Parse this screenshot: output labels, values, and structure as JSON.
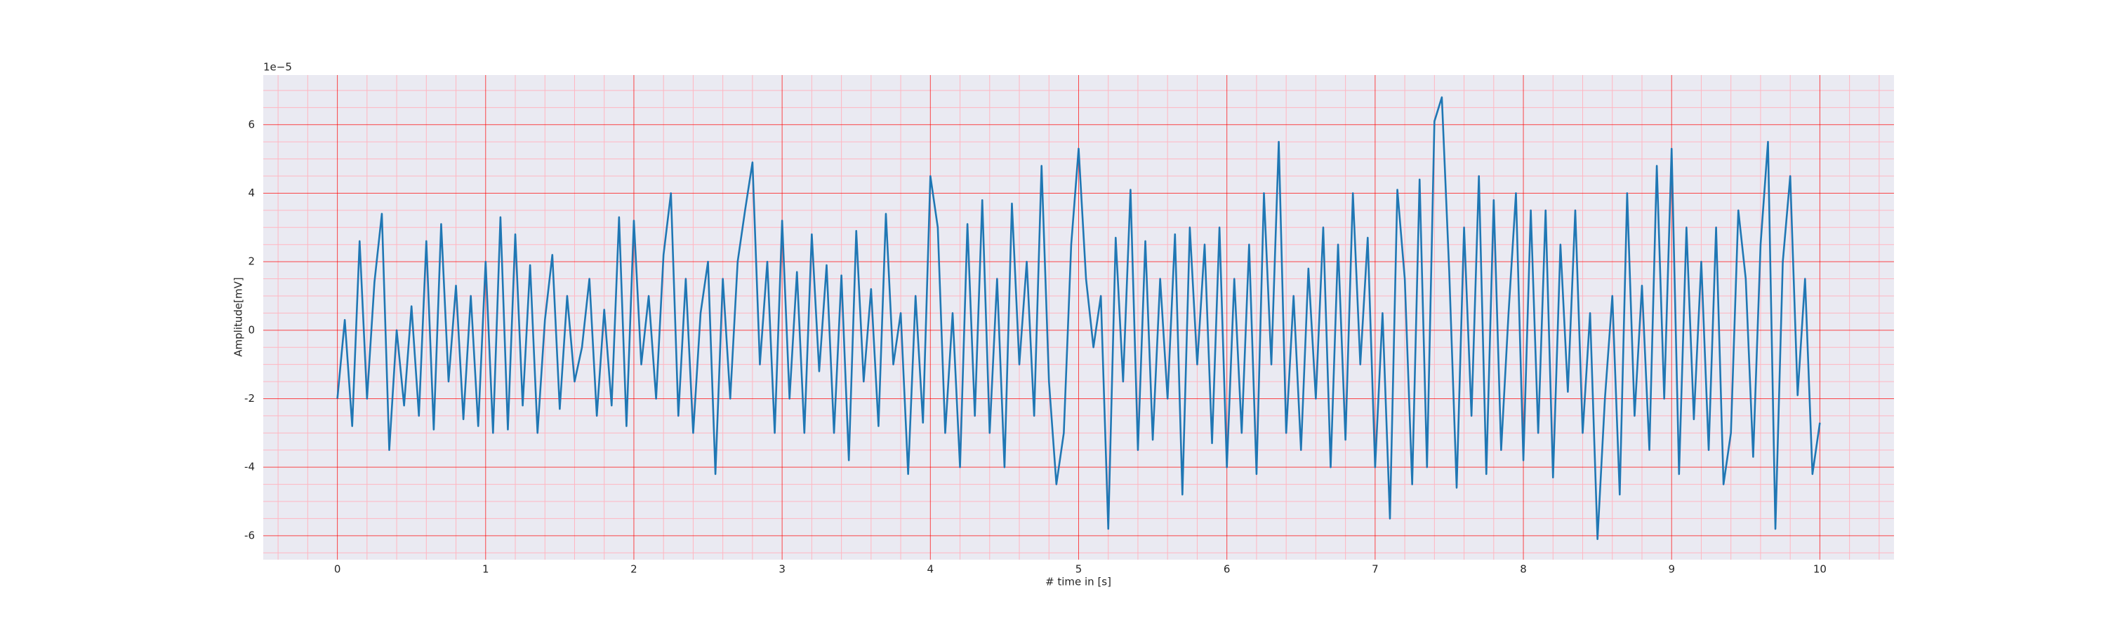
{
  "chart_data": {
    "type": "line",
    "xlabel": "# time in [s]",
    "ylabel": "Amplitude[mV]",
    "y_offset_label": "1e−5",
    "x": [
      0,
      0.05,
      0.1,
      0.15,
      0.2,
      0.25,
      0.3,
      0.35,
      0.4,
      0.45,
      0.5,
      0.55,
      0.6,
      0.65,
      0.7,
      0.75,
      0.8,
      0.85,
      0.9,
      0.95,
      1,
      1.05,
      1.1,
      1.15,
      1.2,
      1.25,
      1.3,
      1.35,
      1.4,
      1.45,
      1.5,
      1.55,
      1.6,
      1.65,
      1.7,
      1.75,
      1.8,
      1.85,
      1.9,
      1.95,
      2,
      2.05,
      2.1,
      2.15,
      2.2,
      2.25,
      2.3,
      2.35,
      2.4,
      2.45,
      2.5,
      2.55,
      2.6,
      2.65,
      2.7,
      2.75,
      2.8,
      2.85,
      2.9,
      2.95,
      3,
      3.05,
      3.1,
      3.15,
      3.2,
      3.25,
      3.3,
      3.35,
      3.4,
      3.45,
      3.5,
      3.55,
      3.6,
      3.65,
      3.7,
      3.75,
      3.8,
      3.85,
      3.9,
      3.95,
      4,
      4.05,
      4.1,
      4.15,
      4.2,
      4.25,
      4.3,
      4.35,
      4.4,
      4.45,
      4.5,
      4.55,
      4.6,
      4.65,
      4.7,
      4.75,
      4.8,
      4.85,
      4.9,
      4.95,
      5,
      5.05,
      5.1,
      5.15,
      5.2,
      5.25,
      5.3,
      5.35,
      5.4,
      5.45,
      5.5,
      5.55,
      5.6,
      5.65,
      5.7,
      5.75,
      5.8,
      5.85,
      5.9,
      5.95,
      6,
      6.05,
      6.1,
      6.15,
      6.2,
      6.25,
      6.3,
      6.35,
      6.4,
      6.45,
      6.5,
      6.55,
      6.6,
      6.65,
      6.7,
      6.75,
      6.8,
      6.85,
      6.9,
      6.95,
      7,
      7.05,
      7.1,
      7.15,
      7.2,
      7.25,
      7.3,
      7.35,
      7.4,
      7.45,
      7.5,
      7.55,
      7.6,
      7.65,
      7.7,
      7.75,
      7.8,
      7.85,
      7.9,
      7.95,
      8,
      8.05,
      8.1,
      8.15,
      8.2,
      8.25,
      8.3,
      8.35,
      8.4,
      8.45,
      8.5,
      8.55,
      8.6,
      8.65,
      8.7,
      8.75,
      8.8,
      8.85,
      8.9,
      8.95,
      9,
      9.05,
      9.1,
      9.15,
      9.2,
      9.25,
      9.3,
      9.35,
      9.4,
      9.45,
      9.5,
      9.55,
      9.6,
      9.65,
      9.7,
      9.75,
      9.8,
      9.85,
      9.9,
      9.95,
      10
    ],
    "series": [
      {
        "color": "#1f77b4",
        "values": [
          -2.0,
          0.3,
          -2.8,
          2.6,
          -2.0,
          1.4,
          3.4,
          -3.5,
          0.0,
          -2.2,
          0.7,
          -2.5,
          2.6,
          -2.9,
          3.1,
          -1.5,
          1.3,
          -2.6,
          1.0,
          -2.8,
          2.0,
          -3.0,
          3.3,
          -2.9,
          2.8,
          -2.2,
          1.9,
          -3.0,
          0.3,
          2.2,
          -2.3,
          1.0,
          -1.5,
          -0.5,
          1.5,
          -2.5,
          0.6,
          -2.2,
          3.3,
          -2.8,
          3.2,
          -1.0,
          1.0,
          -2.0,
          2.2,
          4.0,
          -2.5,
          1.5,
          -3.0,
          0.5,
          2.0,
          -4.2,
          1.5,
          -2.0,
          2.0,
          3.5,
          4.9,
          -1.0,
          2.0,
          -3.0,
          3.2,
          -2.0,
          1.7,
          -3.0,
          2.8,
          -1.2,
          1.9,
          -3.0,
          1.6,
          -3.8,
          2.9,
          -1.5,
          1.2,
          -2.8,
          3.4,
          -1.0,
          0.5,
          -4.2,
          1.0,
          -2.7,
          4.5,
          3.0,
          -3.0,
          0.5,
          -4.0,
          3.1,
          -2.5,
          3.8,
          -3.0,
          1.5,
          -4.0,
          3.7,
          -1.0,
          2.0,
          -2.5,
          4.8,
          -1.5,
          -4.5,
          -3.0,
          2.5,
          5.3,
          1.5,
          -0.5,
          1.0,
          -5.8,
          2.7,
          -1.5,
          4.1,
          -3.5,
          2.6,
          -3.2,
          1.5,
          -2.0,
          2.8,
          -4.8,
          3.0,
          -1.0,
          2.5,
          -3.3,
          3.0,
          -4.0,
          1.5,
          -3.0,
          2.5,
          -4.2,
          4.0,
          -1.0,
          5.5,
          -3.0,
          1.0,
          -3.5,
          1.8,
          -2.0,
          3.0,
          -4.0,
          2.5,
          -3.2,
          4.0,
          -1.0,
          2.7,
          -4.0,
          0.5,
          -5.5,
          4.1,
          1.5,
          -4.5,
          4.4,
          -4.0,
          6.1,
          6.8,
          1.7,
          -4.6,
          3.0,
          -2.5,
          4.5,
          -4.2,
          3.8,
          -3.5,
          0.5,
          4.0,
          -3.8,
          3.5,
          -3.0,
          3.5,
          -4.3,
          2.5,
          -1.8,
          3.5,
          -3.0,
          0.5,
          -6.1,
          -2.0,
          1.0,
          -4.8,
          4.0,
          -2.5,
          1.3,
          -3.5,
          4.8,
          -2.0,
          5.3,
          -4.2,
          3.0,
          -2.6,
          2.0,
          -3.5,
          3.0,
          -4.5,
          -3.0,
          3.5,
          1.5,
          -3.7,
          2.5,
          5.5,
          -5.8,
          2.0,
          4.5,
          -1.9,
          1.5,
          -4.2,
          -2.7
        ]
      }
    ],
    "xlim": [
      -0.5,
      10.5
    ],
    "ylim": [
      -6.7,
      7.45
    ],
    "xticks": [
      0,
      1,
      2,
      3,
      4,
      5,
      6,
      7,
      8,
      9,
      10
    ],
    "yticks": [
      -6,
      -4,
      -2,
      0,
      2,
      4,
      6
    ],
    "xminorticks": [
      -0.4,
      -0.2,
      0.2,
      0.4,
      0.6,
      0.8,
      1.2,
      1.4,
      1.6,
      1.8,
      2.2,
      2.4,
      2.6,
      2.8,
      3.2,
      3.4,
      3.6,
      3.8,
      4.2,
      4.4,
      4.6,
      4.8,
      5.2,
      5.4,
      5.6,
      5.8,
      6.2,
      6.4,
      6.6,
      6.8,
      7.2,
      7.4,
      7.6,
      7.8,
      8.2,
      8.4,
      8.6,
      8.8,
      9.2,
      9.4,
      9.6,
      9.8,
      10.2,
      10.4
    ],
    "yminorticks": [
      -6.5,
      -5.5,
      -5,
      -4.5,
      -3.5,
      -3,
      -2.5,
      -1.5,
      -1,
      -0.5,
      0.5,
      1,
      1.5,
      2.5,
      3,
      3.5,
      4.5,
      5,
      5.5,
      6.5,
      7
    ],
    "grid": true,
    "grid_color": "#ff0000",
    "minor_grid_color": "#ffb6c1",
    "background": "#eaeaf2"
  }
}
